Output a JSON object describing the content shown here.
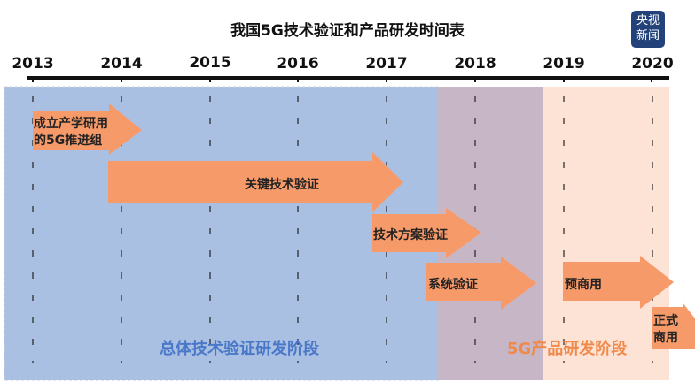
{
  "title": "我国5G技术验证和产品研发时间表",
  "logo_text": "央视新闻",
  "years": [
    "2013",
    "2014",
    "2015",
    "2016",
    "2017",
    "2018",
    "2019",
    "2020"
  ],
  "arrows": [
    {
      "line1": "成立产学研用",
      "line2": "的5G推进组"
    },
    {
      "label": "关键技术验证"
    },
    {
      "label": "技术方案验证"
    },
    {
      "label": "系统验证"
    },
    {
      "label": "预商用"
    },
    {
      "line1": "正式",
      "line2": "商用"
    }
  ],
  "phases": [
    {
      "label": "总体技术验证研发阶段",
      "color": "#4a78c8"
    },
    {
      "label": "5G产品研发阶段",
      "color": "#f08a4b"
    }
  ],
  "colors": {
    "blue_region": "#aac0e2",
    "overlap_region": "#c7b6c6",
    "peach_region": "#fde3d6",
    "arrow": "#f79a6a"
  }
}
